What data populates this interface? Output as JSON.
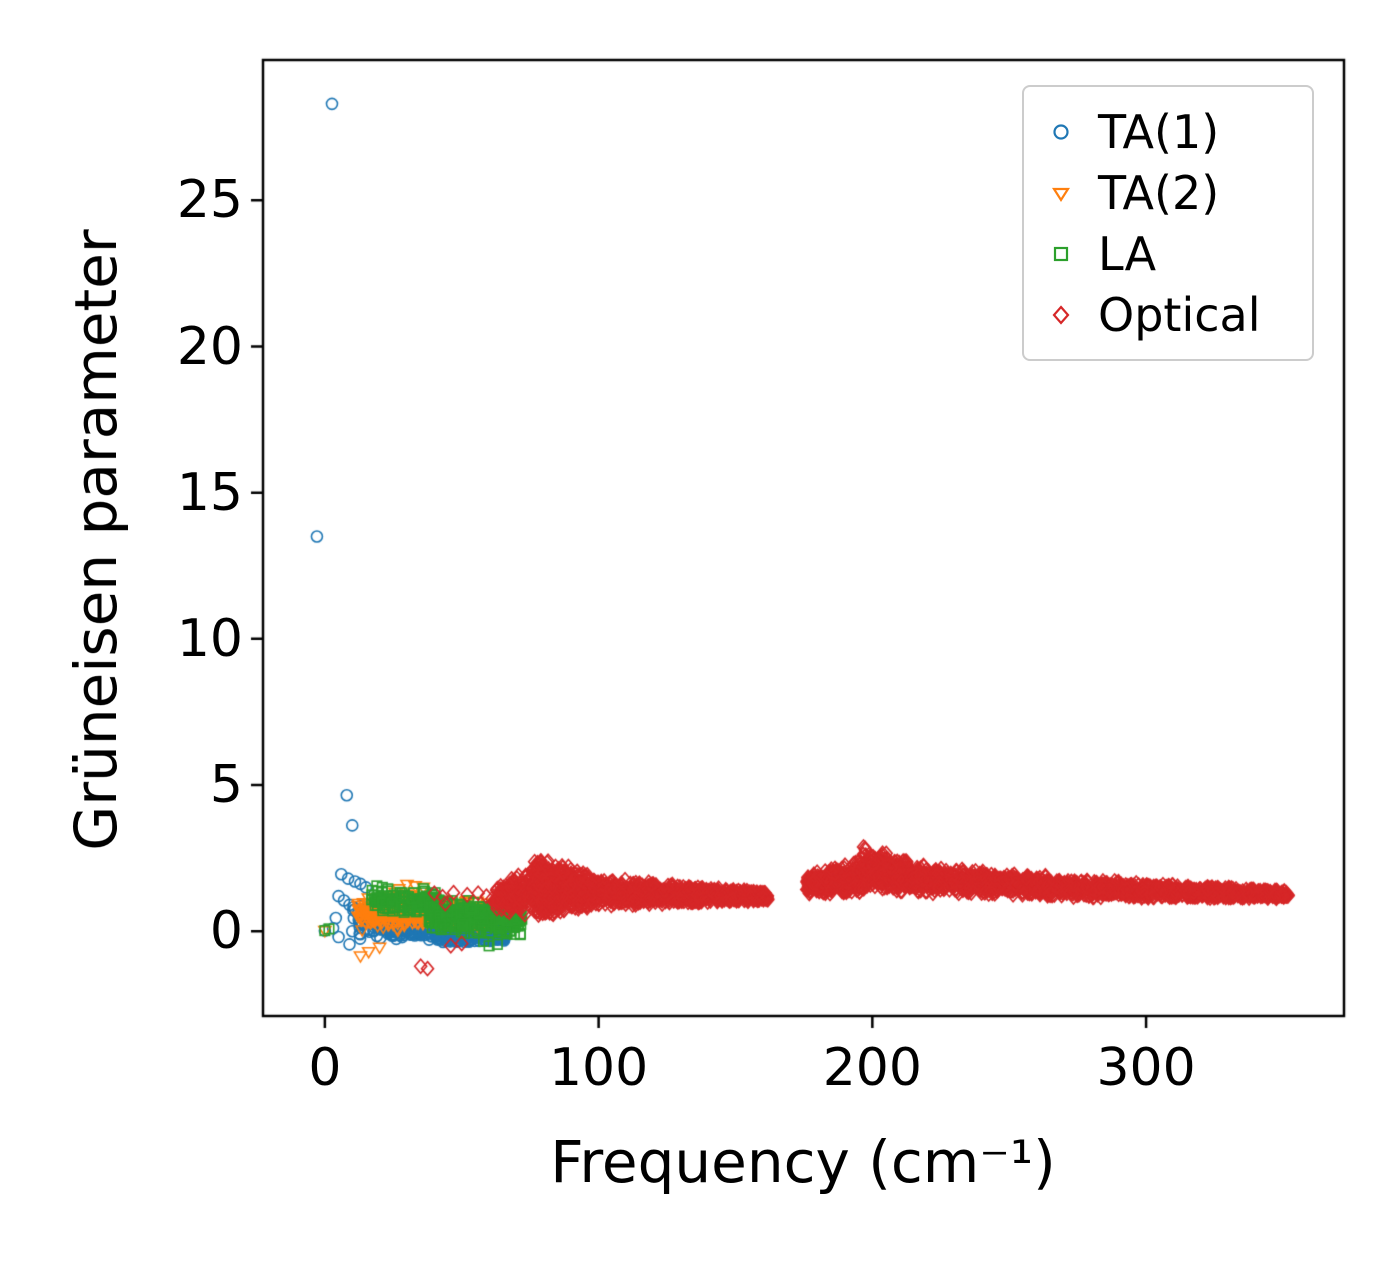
{
  "chart_data": {
    "type": "scatter",
    "title": "",
    "xlabel": "Frequency (cm⁻¹)",
    "ylabel": "Grüneisen parameter",
    "xlim": [
      -22.6,
      372.3
    ],
    "ylim": [
      -2.9,
      29.8
    ],
    "xticks": [
      0,
      100,
      200,
      300
    ],
    "yticks": [
      0,
      5,
      10,
      15,
      20,
      25
    ],
    "grid": false,
    "legend_position": "upper right",
    "series": [
      {
        "name": "TA(1)",
        "marker": "circle",
        "color": "#1f77b4",
        "points": [
          [
            2.6,
            28.3
          ],
          [
            -2.9,
            13.5
          ],
          [
            8,
            4.65
          ],
          [
            10,
            3.62
          ],
          [
            6,
            1.95
          ],
          [
            8.5,
            1.8
          ],
          [
            11,
            1.7
          ],
          [
            13,
            1.62
          ],
          [
            15,
            1.5
          ],
          [
            5,
            1.2
          ],
          [
            7,
            1.05
          ],
          [
            9,
            0.9
          ],
          [
            4,
            0.45
          ],
          [
            3,
            0.1
          ],
          [
            5,
            -0.2
          ],
          [
            9,
            -0.45
          ],
          [
            12,
            0.6
          ],
          [
            0,
            0.02
          ]
        ],
        "bands": [
          {
            "x0": 10,
            "x1": 28,
            "n": 120,
            "y0": 0.35,
            "y1": 0.45,
            "h0": 0.75,
            "h1": 0.65
          },
          {
            "x0": 22,
            "x1": 48,
            "n": 400,
            "y0": 0.25,
            "y1": 0.15,
            "h0": 0.55,
            "h1": 0.5
          },
          {
            "x0": 40,
            "x1": 66,
            "n": 380,
            "y0": 0.05,
            "y1": -0.05,
            "h0": 0.45,
            "h1": 0.35
          }
        ]
      },
      {
        "name": "TA(2)",
        "marker": "triangle-down",
        "color": "#ff7f0e",
        "points": [
          [
            0,
            0.02
          ],
          [
            13,
            -0.85
          ],
          [
            16,
            -0.7
          ],
          [
            20,
            -0.55
          ],
          [
            30,
            1.6
          ],
          [
            33,
            1.55
          ],
          [
            36,
            1.5
          ],
          [
            27,
            1.45
          ]
        ],
        "bands": [
          {
            "x0": 12,
            "x1": 35,
            "n": 160,
            "y0": 0.55,
            "y1": 0.8,
            "h0": 0.75,
            "h1": 0.7
          },
          {
            "x0": 30,
            "x1": 62,
            "n": 300,
            "y0": 0.75,
            "y1": 0.55,
            "h0": 0.6,
            "h1": 0.45
          }
        ]
      },
      {
        "name": "LA",
        "marker": "square",
        "color": "#2ca02c",
        "points": [
          [
            0,
            0.02
          ],
          [
            1.5,
            0.08
          ],
          [
            19,
            1.55
          ],
          [
            21,
            1.5
          ],
          [
            23,
            1.45
          ],
          [
            60,
            -0.5
          ],
          [
            63,
            -0.45
          ],
          [
            58,
            -0.35
          ]
        ],
        "bands": [
          {
            "x0": 16,
            "x1": 42,
            "n": 140,
            "y0": 1.0,
            "y1": 1.05,
            "h0": 0.45,
            "h1": 0.5
          },
          {
            "x0": 38,
            "x1": 72,
            "n": 320,
            "y0": 0.6,
            "y1": 0.4,
            "h0": 0.6,
            "h1": 0.65
          }
        ]
      },
      {
        "name": "Optical",
        "marker": "diamond",
        "color": "#d62728",
        "points": [
          [
            35,
            -1.2
          ],
          [
            37.5,
            -1.28
          ],
          [
            46,
            -0.5
          ],
          [
            50,
            -0.42
          ],
          [
            40,
            1.3
          ],
          [
            43,
            1.18
          ],
          [
            47,
            1.32
          ],
          [
            52,
            1.25
          ],
          [
            56,
            1.3
          ],
          [
            59,
            1.2
          ],
          [
            44,
            0.95
          ],
          [
            61,
            1.1
          ]
        ],
        "bands": [
          {
            "x0": 62,
            "x1": 76,
            "n": 160,
            "y0": 1.05,
            "y1": 1.45,
            "h0": 0.55,
            "h1": 0.95
          },
          {
            "x0": 76,
            "x1": 96,
            "n": 600,
            "y0": 1.5,
            "y1": 1.35,
            "h0": 1.15,
            "h1": 0.7
          },
          {
            "x0": 96,
            "x1": 162,
            "n": 900,
            "y0": 1.35,
            "y1": 1.18,
            "h0": 0.55,
            "h1": 0.15
          },
          {
            "x0": 176,
            "x1": 196,
            "n": 350,
            "y0": 1.6,
            "y1": 1.85,
            "h0": 0.35,
            "h1": 0.6
          },
          {
            "x0": 196,
            "x1": 214,
            "n": 350,
            "y0": 2.15,
            "y1": 1.85,
            "h0": 0.85,
            "h1": 0.55
          },
          {
            "x0": 214,
            "x1": 264,
            "n": 650,
            "y0": 1.8,
            "y1": 1.55,
            "h0": 0.5,
            "h1": 0.38
          },
          {
            "x0": 264,
            "x1": 352,
            "n": 900,
            "y0": 1.5,
            "y1": 1.25,
            "h0": 0.35,
            "h1": 0.15
          }
        ]
      }
    ]
  }
}
